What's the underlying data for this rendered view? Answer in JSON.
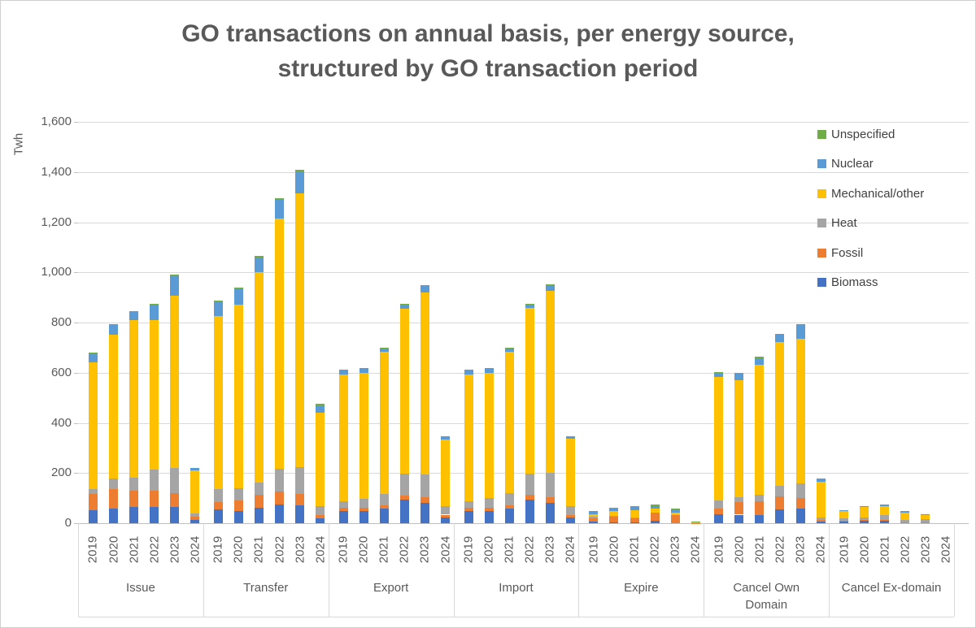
{
  "title": {
    "line1": "GO transactions on annual basis, per energy source,",
    "line2": "structured by GO transaction period"
  },
  "y_axis": {
    "label": "Twh",
    "min": 0,
    "max": 1600,
    "step": 200,
    "tick_labels": [
      "0",
      "200",
      "400",
      "600",
      "800",
      "1,000",
      "1,200",
      "1,400",
      "1,600"
    ]
  },
  "legend": [
    {
      "label": "Unspecified",
      "color": "#70AD47"
    },
    {
      "label": "Nuclear",
      "color": "#5B9BD5"
    },
    {
      "label": "Mechanical/other",
      "color": "#FFC000"
    },
    {
      "label": "Heat",
      "color": "#A5A5A5"
    },
    {
      "label": "Fossil",
      "color": "#ED7D31"
    },
    {
      "label": "Biomass",
      "color": "#4472C4"
    }
  ],
  "chart_data": {
    "type": "bar",
    "stacked": true,
    "grid": true,
    "legend_position": "right",
    "ylim": [
      0,
      1600
    ],
    "groups": [
      "Issue",
      "Transfer",
      "Export",
      "Import",
      "Expire",
      "Cancel Own\nDomain",
      "Cancel Ex-domain"
    ],
    "years": [
      "2019",
      "2020",
      "2021",
      "2022",
      "2023",
      "2024"
    ],
    "series": [
      {
        "name": "Biomass",
        "color": "#4472C4",
        "values": [
          [
            52,
            58,
            66,
            64,
            64,
            13
          ],
          [
            56,
            50,
            60,
            74,
            71,
            20
          ],
          [
            47,
            49,
            57,
            93,
            82,
            24
          ],
          [
            47,
            49,
            59,
            93,
            80,
            24
          ],
          [
            5,
            2,
            2,
            10,
            0,
            0
          ],
          [
            36,
            34,
            34,
            56,
            57,
            5
          ],
          [
            7,
            10,
            11,
            3,
            3,
            0
          ]
        ]
      },
      {
        "name": "Fossil",
        "color": "#ED7D31",
        "values": [
          [
            65,
            78,
            63,
            67,
            56,
            12
          ],
          [
            29,
            41,
            52,
            51,
            47,
            11
          ],
          [
            13,
            12,
            13,
            16,
            21,
            10
          ],
          [
            13,
            13,
            11,
            19,
            23,
            9
          ],
          [
            15,
            24,
            19,
            32,
            31,
            1
          ],
          [
            22,
            51,
            54,
            50,
            42,
            9
          ],
          [
            2,
            2,
            2,
            1,
            1,
            0
          ]
        ]
      },
      {
        "name": "Heat",
        "color": "#A5A5A5",
        "values": [
          [
            20,
            41,
            53,
            84,
            100,
            13
          ],
          [
            51,
            48,
            49,
            92,
            107,
            38
          ],
          [
            28,
            37,
            47,
            87,
            90,
            35
          ],
          [
            28,
            39,
            49,
            86,
            97,
            34
          ],
          [
            5,
            2,
            3,
            0,
            0,
            1
          ],
          [
            32,
            18,
            26,
            43,
            61,
            8
          ],
          [
            10,
            11,
            19,
            9,
            13,
            0
          ]
        ]
      },
      {
        "name": "Mechanical/other",
        "color": "#FFC000",
        "values": [
          [
            505,
            575,
            629,
            596,
            688,
            173
          ],
          [
            691,
            733,
            839,
            997,
            1090,
            371
          ],
          [
            506,
            500,
            565,
            660,
            728,
            266
          ],
          [
            506,
            497,
            563,
            660,
            725,
            270
          ],
          [
            12,
            21,
            28,
            16,
            11,
            2
          ],
          [
            492,
            468,
            519,
            573,
            576,
            143
          ],
          [
            32,
            42,
            36,
            30,
            17,
            0
          ]
        ]
      },
      {
        "name": "Nuclear",
        "color": "#5B9BD5",
        "values": [
          [
            35,
            40,
            32,
            60,
            80,
            8
          ],
          [
            53,
            62,
            58,
            77,
            88,
            30
          ],
          [
            14,
            17,
            13,
            13,
            25,
            10
          ],
          [
            14,
            16,
            11,
            13,
            25,
            10
          ],
          [
            8,
            12,
            14,
            11,
            16,
            0
          ],
          [
            14,
            24,
            25,
            29,
            53,
            13
          ],
          [
            2,
            2,
            3,
            1,
            1,
            0
          ]
        ]
      },
      {
        "name": "Unspecified",
        "color": "#70AD47",
        "values": [
          [
            3,
            3,
            2,
            5,
            2,
            0
          ],
          [
            6,
            6,
            6,
            6,
            6,
            5
          ],
          [
            3,
            5,
            5,
            6,
            4,
            0
          ],
          [
            3,
            5,
            5,
            5,
            2,
            0
          ],
          [
            3,
            2,
            2,
            7,
            1,
            3
          ],
          [
            7,
            4,
            5,
            3,
            4,
            0
          ],
          [
            0,
            0,
            3,
            3,
            2,
            0
          ]
        ]
      }
    ]
  }
}
